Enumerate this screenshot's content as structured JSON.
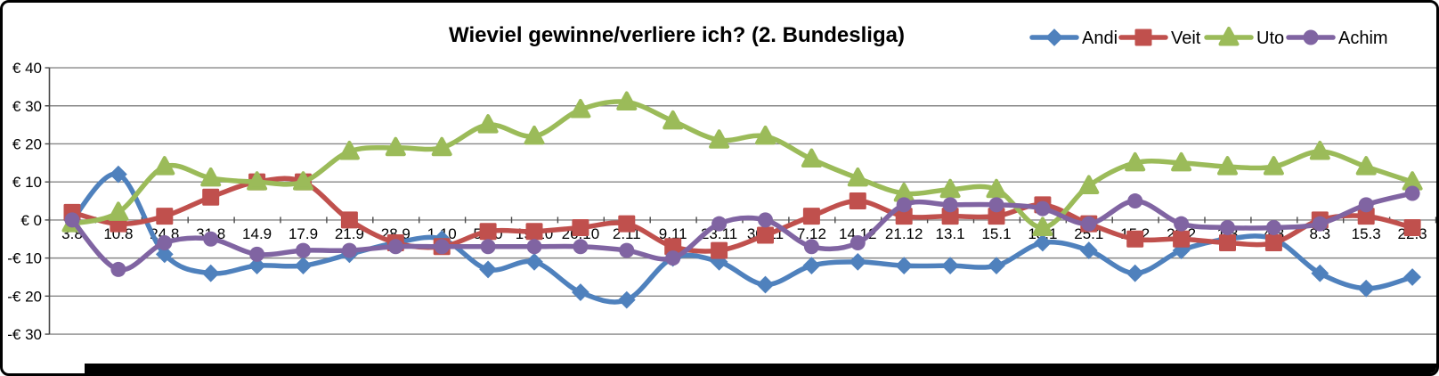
{
  "chart_data": {
    "type": "line",
    "title": "Wieviel gewinne/verliere ich? (2. Bundesliga)",
    "categories": [
      "3.8",
      "10.8",
      "24.8",
      "31.8",
      "14.9",
      "17.9",
      "21.9",
      "28.9",
      "1.10",
      "5.10",
      "19.10",
      "26.10",
      "2.11",
      "9.11",
      "23.11",
      "30.11",
      "7.12",
      "14.12",
      "21.12",
      "13.1",
      "15.1",
      "18.1",
      "25.1",
      "15.2",
      "22.2",
      "1.3",
      "4.3",
      "8.3",
      "15.3",
      "22.3"
    ],
    "series": [
      {
        "name": "Andi",
        "marker": "diamond",
        "color": "#4F81BD",
        "values": [
          0,
          12,
          -9,
          -14,
          -12,
          -12,
          -9,
          -6,
          -5,
          -13,
          -11,
          -19,
          -21,
          -10,
          -11,
          -17,
          -12,
          -11,
          -12,
          -12,
          -12,
          -6,
          -8,
          -14,
          -8,
          -5,
          -5,
          -14,
          -18,
          -15
        ]
      },
      {
        "name": "Veit",
        "marker": "square",
        "color": "#C0504D",
        "values": [
          2,
          -1,
          1,
          6,
          10,
          10,
          0,
          -6,
          -7,
          -3,
          -3,
          -2,
          -1,
          -7,
          -8,
          -4,
          1,
          5,
          1,
          1,
          1,
          4,
          -1,
          -5,
          -5,
          -6,
          -6,
          0,
          1,
          -2
        ]
      },
      {
        "name": "Uto",
        "marker": "triangle",
        "color": "#9BBB59",
        "values": [
          -1,
          2,
          14,
          11,
          10,
          10,
          18,
          19,
          19,
          25,
          22,
          29,
          31,
          26,
          21,
          22,
          16,
          11,
          7,
          8,
          8,
          -2,
          9,
          15,
          15,
          14,
          14,
          18,
          14,
          10
        ]
      },
      {
        "name": "Achim",
        "marker": "circle",
        "color": "#8064A2",
        "values": [
          0,
          -13,
          -6,
          -5,
          -9,
          -8,
          -8,
          -7,
          -7,
          -7,
          -7,
          -7,
          -8,
          -10,
          -1,
          0,
          -7,
          -6,
          4,
          4,
          4,
          3,
          -1,
          5,
          -1,
          -2,
          -2,
          -1,
          4,
          7
        ]
      }
    ],
    "y_axis": {
      "min": -30,
      "max": 40,
      "step": 10,
      "unit": "€",
      "tick_labels": [
        "€ 40",
        "€ 30",
        "€ 20",
        "€ 10",
        "€ 0",
        "-€ 10",
        "-€ 20",
        "-€ 30"
      ]
    },
    "x_axis": {
      "labels_at_zero_line": true
    },
    "grid": true,
    "smooth_lines": true,
    "legend_position": "top-right",
    "gridline_color": "#878787",
    "axis_color": "#4a4a4a",
    "background": "#FFFFFF"
  }
}
